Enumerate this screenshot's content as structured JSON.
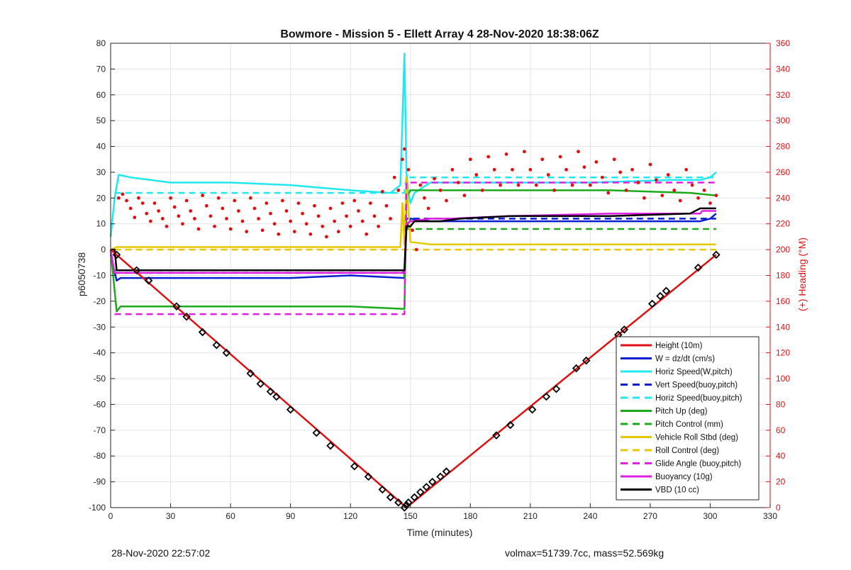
{
  "chart_data": {
    "type": "line",
    "title": "Bowmore - Mission 5 - Ellett Array 4 28-Nov-2020 18:38:06Z",
    "xlabel": "Time (minutes)",
    "ylabel": "p6050738",
    "y2label": "(+) Heading (°M)",
    "xlim": [
      0,
      330
    ],
    "ylim": [
      -100,
      80
    ],
    "y2lim": [
      0,
      360
    ],
    "x_ticks": [
      0,
      30,
      60,
      90,
      120,
      150,
      180,
      210,
      240,
      270,
      300,
      330
    ],
    "y_ticks": [
      -100,
      -90,
      -80,
      -70,
      -60,
      -50,
      -40,
      -30,
      -20,
      -10,
      0,
      10,
      20,
      30,
      40,
      50,
      60,
      70,
      80
    ],
    "y2_ticks": [
      0,
      20,
      40,
      60,
      80,
      100,
      120,
      140,
      160,
      180,
      200,
      220,
      240,
      260,
      280,
      300,
      320,
      340,
      360
    ],
    "grid": true,
    "legend_position": "bottom-right",
    "colors": {
      "height": "#e01010",
      "w": "#0a1ed0",
      "horiz": "#20e8ee",
      "pitch": "#1aaa1a",
      "roll": "#e6c800",
      "glide": "#e020e0",
      "buoy": "#e020e0",
      "vbd": "#000000",
      "heading": "#e01010",
      "right_axis": "#e01010"
    },
    "series": [
      {
        "name": "Height (10m)",
        "style": "solid",
        "color": "#e01010",
        "x": [
          0,
          148,
          303
        ],
        "values": [
          0,
          -100,
          -2
        ]
      },
      {
        "name": "W = dz/dt (cm/s)",
        "style": "solid",
        "color": "#0a1ed0",
        "x": [
          0,
          3,
          5,
          30,
          60,
          90,
          120,
          147,
          148,
          150,
          160,
          180,
          210,
          240,
          270,
          295,
          300,
          303
        ],
        "values": [
          -2,
          -12,
          -11,
          -11,
          -11,
          -11,
          -10,
          -11,
          8,
          12,
          11,
          11,
          11,
          11,
          11,
          11,
          12,
          14
        ]
      },
      {
        "name": "Horiz Speed(W,pitch)",
        "style": "solid",
        "color": "#20e8ee",
        "x": [
          0,
          2,
          4,
          10,
          30,
          60,
          90,
          120,
          140,
          145,
          147,
          148,
          149,
          150,
          152,
          160,
          200,
          240,
          280,
          295,
          300,
          303
        ],
        "values": [
          5,
          20,
          29,
          28,
          26,
          26,
          25,
          23,
          22,
          25,
          76,
          30,
          22,
          18,
          22,
          26,
          26,
          26,
          27,
          27,
          28,
          30
        ]
      },
      {
        "name": "Vert Speed(buoy,pitch)",
        "style": "dashed",
        "color": "#0a1ed0",
        "x": [
          2,
          147,
          148,
          303
        ],
        "values": [
          -9,
          -9,
          12,
          12
        ]
      },
      {
        "name": "Horiz Speed(buoy,pitch)",
        "style": "dashed",
        "color": "#20e8ee",
        "x": [
          2,
          147,
          148,
          303
        ],
        "values": [
          22,
          22,
          28,
          28
        ]
      },
      {
        "name": "Pitch Up (deg)",
        "style": "solid",
        "color": "#1aaa1a",
        "x": [
          0,
          3,
          5,
          30,
          60,
          90,
          120,
          147,
          148,
          150,
          160,
          200,
          250,
          290,
          303
        ],
        "values": [
          0,
          -24,
          -22,
          -22,
          -22,
          -22,
          -22,
          -23,
          20,
          23,
          23,
          23,
          23,
          22,
          21
        ]
      },
      {
        "name": "Pitch Control (mm)",
        "style": "dashed",
        "color": "#1aaa1a",
        "x": [
          2,
          147,
          148,
          303
        ],
        "values": [
          -8,
          -8,
          8,
          8
        ]
      },
      {
        "name": "Vehicle Roll Stbd (deg)",
        "style": "solid",
        "color": "#e6c800",
        "x": [
          0,
          3,
          5,
          60,
          120,
          145,
          146,
          147,
          148,
          150,
          160,
          200,
          250,
          300,
          303
        ],
        "values": [
          0,
          1,
          1,
          1,
          1,
          1,
          18,
          2,
          28,
          3,
          2,
          2,
          2,
          2,
          2
        ]
      },
      {
        "name": "Roll Control (deg)",
        "style": "dashed",
        "color": "#e6c800",
        "x": [
          2,
          147,
          148,
          303
        ],
        "values": [
          0,
          0,
          0,
          0
        ]
      },
      {
        "name": "Glide Angle (buoy,pitch)",
        "style": "dashed",
        "color": "#e020e0",
        "x": [
          2,
          147,
          148,
          303
        ],
        "values": [
          -25,
          -25,
          26,
          26
        ]
      },
      {
        "name": "Buoyancy (10g)",
        "style": "solid",
        "color": "#e020e0",
        "x": [
          0,
          2,
          146,
          147,
          148,
          150,
          160,
          170,
          200,
          250,
          295,
          296,
          303
        ],
        "values": [
          0,
          -9,
          -9,
          -8,
          10,
          11,
          12,
          12,
          13,
          14,
          14,
          15,
          15
        ]
      },
      {
        "name": "VBD (10 cc)",
        "style": "solid",
        "color": "#000000",
        "x": [
          0,
          2,
          3,
          30,
          60,
          90,
          120,
          147,
          148,
          150,
          152,
          165,
          175,
          200,
          250,
          290,
          295,
          303
        ],
        "values": [
          0,
          0,
          -8,
          -8,
          -8,
          -8,
          -8,
          -8,
          9,
          9,
          11,
          11,
          12,
          13,
          13,
          14,
          16,
          16
        ]
      }
    ],
    "heading_points": {
      "axis": "right",
      "color": "#e01010",
      "x": [
        4,
        6,
        8,
        10,
        12,
        14,
        16,
        18,
        20,
        22,
        24,
        26,
        28,
        30,
        32,
        34,
        36,
        38,
        40,
        42,
        44,
        46,
        48,
        50,
        52,
        54,
        56,
        58,
        60,
        62,
        64,
        66,
        68,
        70,
        72,
        74,
        76,
        78,
        80,
        82,
        84,
        86,
        88,
        90,
        92,
        94,
        96,
        98,
        100,
        102,
        104,
        106,
        108,
        110,
        112,
        114,
        116,
        118,
        120,
        122,
        124,
        126,
        128,
        130,
        132,
        134,
        136,
        138,
        140,
        142,
        144,
        146,
        147,
        149,
        151,
        153,
        155,
        157,
        159,
        162,
        165,
        168,
        171,
        174,
        177,
        180,
        183,
        186,
        189,
        192,
        195,
        198,
        201,
        204,
        207,
        210,
        213,
        216,
        219,
        222,
        225,
        228,
        231,
        234,
        237,
        240,
        243,
        246,
        249,
        252,
        255,
        258,
        261,
        264,
        267,
        270,
        273,
        276,
        279,
        282,
        285,
        288,
        291,
        294,
        297,
        300,
        303
      ],
      "values": [
        240,
        243,
        238,
        232,
        225,
        240,
        236,
        228,
        222,
        236,
        230,
        224,
        218,
        240,
        233,
        226,
        220,
        238,
        230,
        224,
        216,
        242,
        234,
        226,
        218,
        240,
        232,
        224,
        216,
        238,
        230,
        222,
        214,
        240,
        232,
        224,
        215,
        236,
        228,
        220,
        212,
        238,
        230,
        222,
        214,
        236,
        228,
        220,
        212,
        234,
        226,
        218,
        210,
        232,
        222,
        214,
        236,
        226,
        218,
        238,
        230,
        222,
        212,
        236,
        226,
        218,
        245,
        234,
        224,
        256,
        246,
        270,
        278,
        262,
        215,
        200,
        250,
        240,
        232,
        255,
        246,
        238,
        262,
        252,
        242,
        270,
        258,
        246,
        272,
        262,
        250,
        274,
        262,
        250,
        276,
        262,
        250,
        270,
        258,
        246,
        272,
        262,
        250,
        276,
        264,
        250,
        268,
        256,
        244,
        270,
        260,
        246,
        262,
        252,
        240,
        266,
        254,
        242,
        258,
        246,
        238,
        262,
        250,
        240,
        246,
        236,
        242
      ]
    },
    "height_markers": {
      "axis": "left",
      "color": "#000000",
      "x": [
        3,
        13,
        19,
        33,
        38,
        46,
        53,
        58,
        70,
        75,
        80,
        83,
        90,
        103,
        110,
        122,
        129,
        136,
        140,
        144,
        147,
        148,
        149,
        152,
        155,
        158,
        161,
        165,
        168,
        193,
        200,
        211,
        218,
        223,
        233,
        238,
        254,
        257,
        271,
        275,
        278,
        294,
        303
      ],
      "values": [
        -2,
        -8,
        -12,
        -22,
        -26,
        -32,
        -37,
        -40,
        -48,
        -52,
        -55,
        -57,
        -62,
        -71,
        -76,
        -84,
        -88,
        -93,
        -96,
        -98,
        -100,
        -99,
        -98,
        -96,
        -94,
        -92,
        -90,
        -88,
        -86,
        -72,
        -68,
        -62,
        -57,
        -54,
        -46,
        -43,
        -33,
        -31,
        -21,
        -18,
        -16,
        -7,
        -2
      ]
    }
  },
  "footer": {
    "left": "28-Nov-2020 22:57:02",
    "right": "volmax=51739.7cc, mass=52.569kg"
  }
}
